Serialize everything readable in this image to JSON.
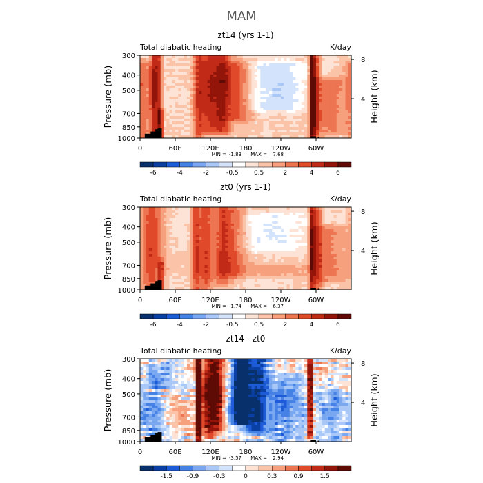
{
  "figure_title": "MAM",
  "colors": {
    "palette": [
      "#08306b",
      "#0a3fa3",
      "#1e5bd8",
      "#4682e6",
      "#7aa8f0",
      "#a9c8f7",
      "#d2e3fb",
      "#ffffff",
      "#fde3d5",
      "#fbc4a9",
      "#f6a07e",
      "#ee7551",
      "#e04a2b",
      "#c02a17",
      "#931509",
      "#5e0a05"
    ],
    "orography": "#000000"
  },
  "chart_data": [
    {
      "type": "heatmap",
      "id": "zt14",
      "title": "zt14 (yrs 1-1)",
      "left_label": "Total diabatic heating",
      "right_label": "K/day",
      "xlabel": "",
      "ylabel": "Pressure (mb)",
      "y2label": "Height (km)",
      "x_ticks": [
        "0",
        "60E",
        "120E",
        "180",
        "120W",
        "60W"
      ],
      "x_tick_lons": [
        0,
        60,
        120,
        180,
        240,
        300
      ],
      "xlim": [
        0,
        360
      ],
      "y_ticks": [
        "300",
        "400",
        "500",
        "700",
        "850",
        "1000"
      ],
      "y_tick_values": [
        300,
        400,
        500,
        700,
        850,
        1000
      ],
      "ylim": [
        1000,
        300
      ],
      "y2_ticks": [
        "8",
        "4"
      ],
      "y2_tick_values": [
        8,
        4
      ],
      "min_label": "MIN =",
      "min_value": "-1.83",
      "max_label": "MAX =",
      "max_value": "7.68",
      "colorbar_levels": [
        -7,
        -6,
        -5,
        -4,
        -3,
        -2,
        -1,
        -0.5,
        0,
        0.5,
        1,
        2,
        3,
        4,
        5,
        6,
        7
      ],
      "colorbar_labels": [
        "-6",
        "-4",
        "-2",
        "-0.5",
        "0.5",
        "2",
        "4",
        "6"
      ],
      "colorbar_label_values": [
        -6,
        -4,
        -2,
        -0.5,
        0.5,
        2,
        4,
        6
      ],
      "scale": 1,
      "features": [
        {
          "lon": 27,
          "width": 8,
          "amp": 4.5,
          "top": 300,
          "bottom": 1000,
          "sharp": 2
        },
        {
          "lon": 35,
          "width": 4,
          "amp": 3,
          "top": 700,
          "bottom": 1000,
          "sharp": 2
        },
        {
          "lon": 5,
          "width": 10,
          "amp": 2.2,
          "top": 350,
          "bottom": 1000,
          "sharp": 1
        },
        {
          "lon": 100,
          "width": 6,
          "amp": 3.5,
          "top": 300,
          "bottom": 1000,
          "sharp": 1
        },
        {
          "lon": 118,
          "width": 10,
          "amp": 4,
          "top": 300,
          "bottom": 900,
          "sharp": 1
        },
        {
          "lon": 140,
          "width": 10,
          "amp": 4.5,
          "top": 300,
          "bottom": 900,
          "sharp": 1
        },
        {
          "lon": 165,
          "width": 14,
          "amp": 3,
          "top": 350,
          "bottom": 750,
          "sharp": 1
        },
        {
          "lon": 235,
          "width": 40,
          "amp": -1.4,
          "top": 350,
          "bottom": 650,
          "sharp": 1
        },
        {
          "lon": 293,
          "width": 4,
          "amp": 6.5,
          "top": 300,
          "bottom": 1000,
          "sharp": 2
        },
        {
          "lon": 300,
          "width": 5,
          "amp": 3.5,
          "top": 320,
          "bottom": 950,
          "sharp": 1
        },
        {
          "lon": 322,
          "width": 20,
          "amp": 2.2,
          "top": 450,
          "bottom": 900,
          "sharp": 1
        }
      ],
      "noise": 0.45,
      "bias": 0.5,
      "seed": 11
    },
    {
      "type": "heatmap",
      "id": "zt0",
      "title": "zt0 (yrs 1-1)",
      "left_label": "Total diabatic heating",
      "right_label": "K/day",
      "xlabel": "",
      "ylabel": "Pressure (mb)",
      "y2label": "Height (km)",
      "x_ticks": [
        "0",
        "60E",
        "120E",
        "180",
        "120W",
        "60W"
      ],
      "x_tick_lons": [
        0,
        60,
        120,
        180,
        240,
        300
      ],
      "xlim": [
        0,
        360
      ],
      "y_ticks": [
        "300",
        "400",
        "500",
        "700",
        "850",
        "1000"
      ],
      "y_tick_values": [
        300,
        400,
        500,
        700,
        850,
        1000
      ],
      "ylim": [
        1000,
        300
      ],
      "y2_ticks": [
        "8",
        "4"
      ],
      "y2_tick_values": [
        8,
        4
      ],
      "min_label": "MIN =",
      "min_value": "-1.74",
      "max_label": "MAX =",
      "max_value": "6.37",
      "colorbar_levels": [
        -7,
        -6,
        -5,
        -4,
        -3,
        -2,
        -1,
        -0.5,
        0,
        0.5,
        1,
        2,
        3,
        4,
        5,
        6,
        7
      ],
      "colorbar_labels": [
        "-6",
        "-4",
        "-2",
        "-0.5",
        "0.5",
        "2",
        "4",
        "6"
      ],
      "colorbar_label_values": [
        -6,
        -4,
        -2,
        -0.5,
        0.5,
        2,
        4,
        6
      ],
      "scale": 1,
      "features": [
        {
          "lon": 20,
          "width": 12,
          "amp": 3.5,
          "top": 300,
          "bottom": 1000,
          "sharp": 1
        },
        {
          "lon": 35,
          "width": 4,
          "amp": 3,
          "top": 700,
          "bottom": 1000,
          "sharp": 2
        },
        {
          "lon": 95,
          "width": 5,
          "amp": 3.5,
          "top": 300,
          "bottom": 1000,
          "sharp": 1
        },
        {
          "lon": 112,
          "width": 8,
          "amp": 3.5,
          "top": 300,
          "bottom": 950,
          "sharp": 1
        },
        {
          "lon": 140,
          "width": 10,
          "amp": 3,
          "top": 300,
          "bottom": 900,
          "sharp": 1
        },
        {
          "lon": 160,
          "width": 14,
          "amp": 2.5,
          "top": 320,
          "bottom": 800,
          "sharp": 1
        },
        {
          "lon": 220,
          "width": 60,
          "amp": -0.9,
          "top": 350,
          "bottom": 650,
          "sharp": 1
        },
        {
          "lon": 293,
          "width": 4,
          "amp": 4.5,
          "top": 300,
          "bottom": 1000,
          "sharp": 2
        },
        {
          "lon": 302,
          "width": 6,
          "amp": 3.5,
          "top": 320,
          "bottom": 950,
          "sharp": 1
        },
        {
          "lon": 322,
          "width": 18,
          "amp": 2,
          "top": 420,
          "bottom": 850,
          "sharp": 1
        },
        {
          "lon": 200,
          "width": 80,
          "amp": 1,
          "top": 620,
          "bottom": 780,
          "sharp": 1
        }
      ],
      "noise": 0.4,
      "bias": 0.45,
      "seed": 23
    },
    {
      "type": "heatmap",
      "id": "diff",
      "title": "zt14 - zt0",
      "left_label": "Total diabatic heating",
      "right_label": "K/day",
      "xlabel": "",
      "ylabel": "Pressure (mb)",
      "y2label": "Height (km)",
      "x_ticks": [
        "0",
        "60E",
        "120E",
        "180",
        "120W",
        "60W"
      ],
      "x_tick_lons": [
        0,
        60,
        120,
        180,
        240,
        300
      ],
      "xlim": [
        0,
        360
      ],
      "y_ticks": [
        "300",
        "400",
        "500",
        "700",
        "850",
        "1000"
      ],
      "y_tick_values": [
        300,
        400,
        500,
        700,
        850,
        1000
      ],
      "ylim": [
        1000,
        300
      ],
      "y2_ticks": [
        "8",
        "4"
      ],
      "y2_tick_values": [
        8,
        4
      ],
      "min_label": "MIN =",
      "min_value": "-3.57",
      "max_label": "MAX =",
      "max_value": "2.94",
      "colorbar_levels": [
        -2.1,
        -1.8,
        -1.5,
        -1.2,
        -0.9,
        -0.6,
        -0.3,
        -0.15,
        0,
        0.15,
        0.3,
        0.6,
        0.9,
        1.2,
        1.5,
        1.8,
        2.1
      ],
      "colorbar_labels": [
        "-1.5",
        "-0.9",
        "-0.3",
        "0",
        "0.3",
        "0.9",
        "1.5"
      ],
      "colorbar_label_values": [
        -1.5,
        -0.9,
        -0.3,
        0,
        0.3,
        0.9,
        1.5
      ],
      "scale": 1,
      "features": [
        {
          "lon": 100,
          "width": 3,
          "amp": 2.5,
          "top": 300,
          "bottom": 1000,
          "sharp": 2
        },
        {
          "lon": 118,
          "width": 10,
          "amp": 1.8,
          "top": 300,
          "bottom": 900,
          "sharp": 1
        },
        {
          "lon": 133,
          "width": 7,
          "amp": 1.6,
          "top": 300,
          "bottom": 800,
          "sharp": 1
        },
        {
          "lon": 172,
          "width": 10,
          "amp": -2.8,
          "top": 300,
          "bottom": 750,
          "sharp": 1
        },
        {
          "lon": 198,
          "width": 14,
          "amp": -1.6,
          "top": 300,
          "bottom": 850,
          "sharp": 1
        },
        {
          "lon": 25,
          "width": 20,
          "amp": -0.8,
          "top": 350,
          "bottom": 900,
          "sharp": 1
        },
        {
          "lon": 290,
          "width": 5,
          "amp": 2,
          "top": 300,
          "bottom": 900,
          "sharp": 2
        },
        {
          "lon": 50,
          "width": 20,
          "amp": 0.5,
          "top": 500,
          "bottom": 900,
          "sharp": 1
        },
        {
          "lon": 245,
          "width": 30,
          "amp": -0.9,
          "top": 400,
          "bottom": 950,
          "sharp": 1
        },
        {
          "lon": 330,
          "width": 20,
          "amp": -0.6,
          "top": 500,
          "bottom": 1000,
          "sharp": 1
        }
      ],
      "noise": 0.9,
      "bias": 0,
      "seed": 37
    }
  ]
}
